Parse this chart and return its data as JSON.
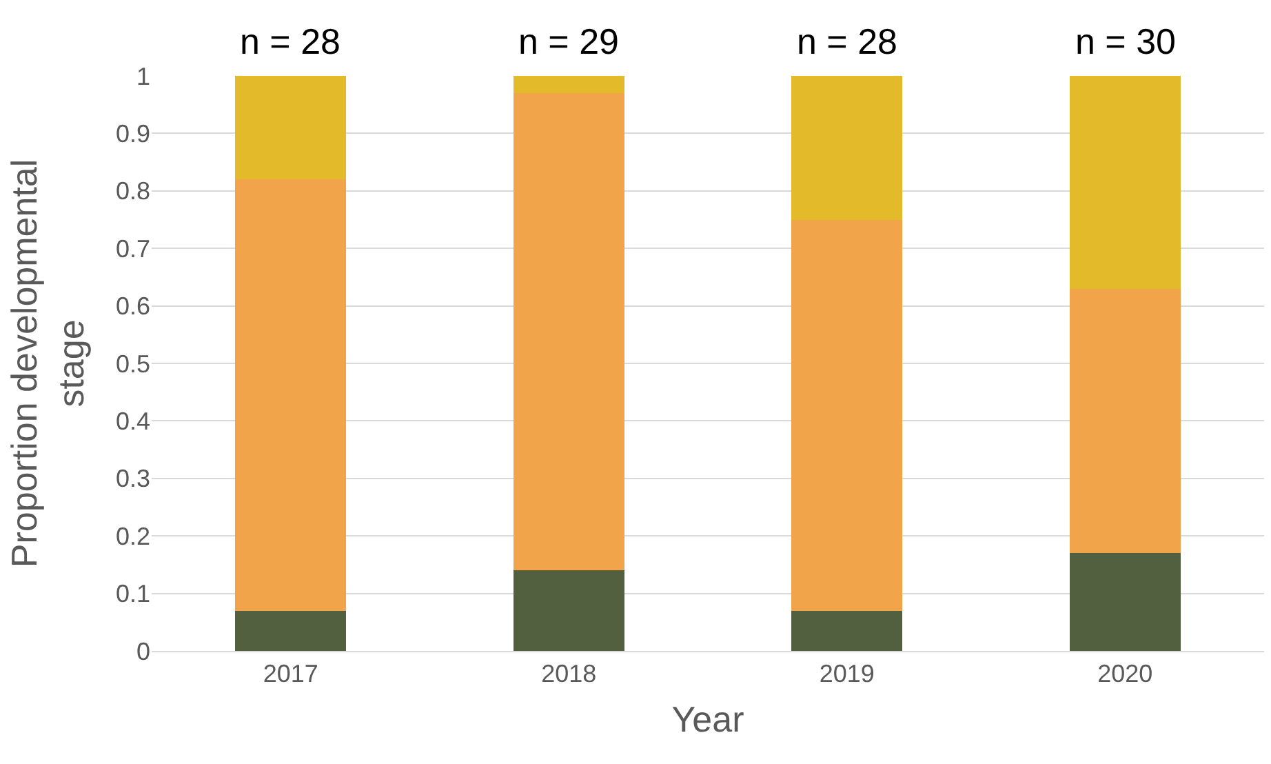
{
  "chart_data": {
    "type": "bar",
    "stacked": true,
    "xlabel": "Year",
    "ylabel": "Proportion developmental stage",
    "categories": [
      "2017",
      "2018",
      "2019",
      "2020"
    ],
    "series": [
      {
        "color": "#536040",
        "values": [
          0.07,
          0.14,
          0.07,
          0.17
        ]
      },
      {
        "color": "#f2a44a",
        "values": [
          0.75,
          0.83,
          0.68,
          0.46
        ]
      },
      {
        "color": "#e3bb2a",
        "values": [
          0.18,
          0.03,
          0.25,
          0.37
        ]
      }
    ],
    "ylim": [
      0,
      1
    ],
    "yticks": [
      0,
      0.1,
      0.2,
      0.3,
      0.4,
      0.5,
      0.6,
      0.7,
      0.8,
      0.9,
      1
    ],
    "grid": "y",
    "annotations": [
      "n = 28",
      "n = 29",
      "n = 28",
      "n = 30"
    ]
  }
}
